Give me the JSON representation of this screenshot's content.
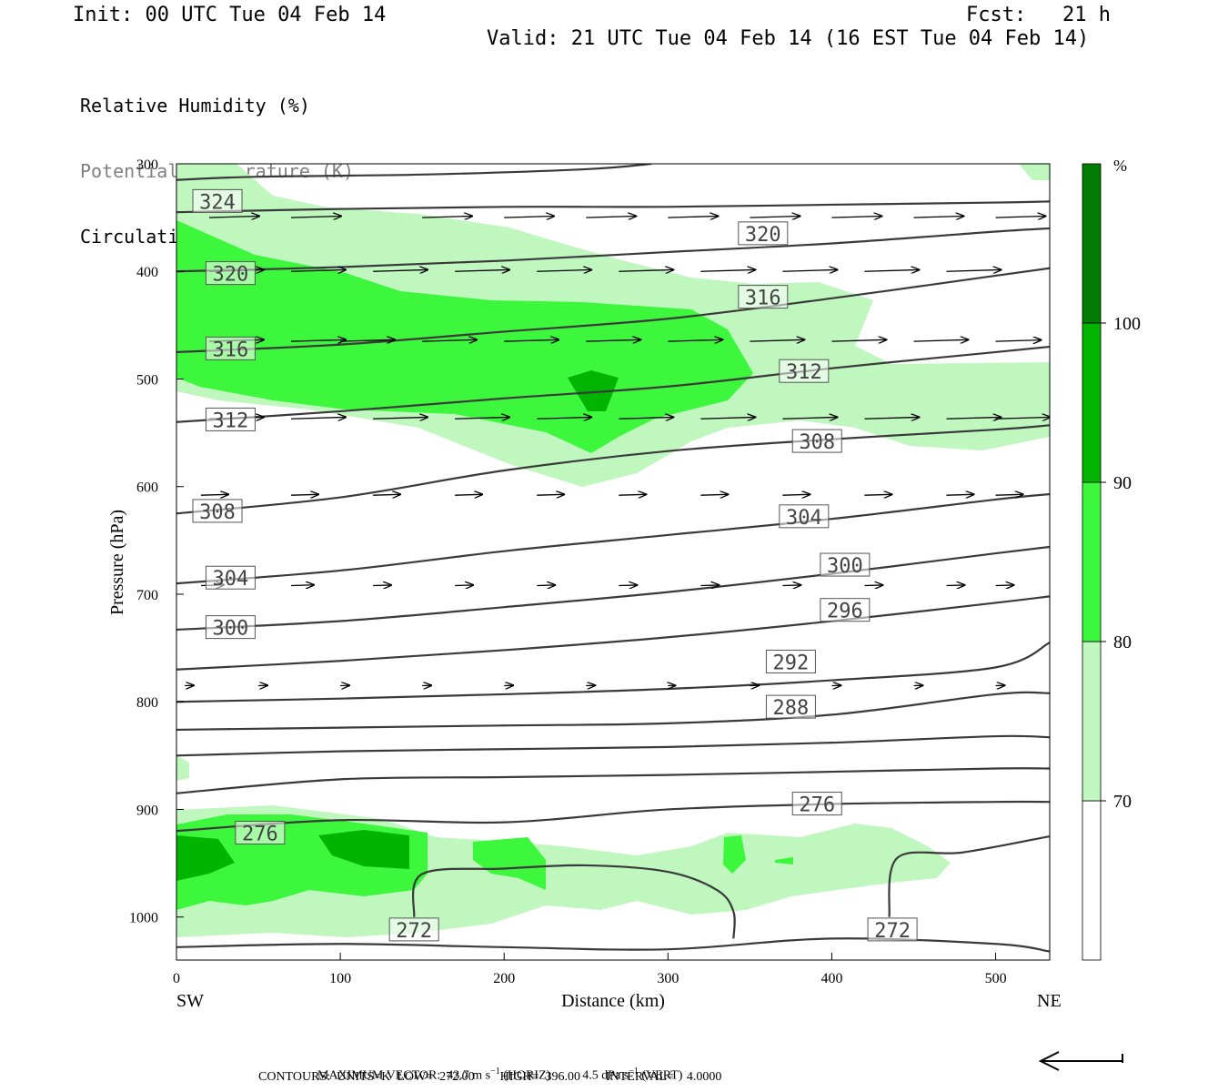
{
  "header": {
    "init": "Init: 00 UTC Tue 04 Feb 14",
    "fcst": "Fcst:   21 h",
    "valid": "Valid: 21 UTC Tue 04 Feb 14 (16 EST Tue 04 Feb 14)"
  },
  "legend": {
    "items": [
      "Relative Humidity (%)",
      "Potential Temperature (K)",
      "Circulation Vectors"
    ],
    "colors": [
      "#000000",
      "#808080",
      "#000000"
    ]
  },
  "footer": {
    "maxvec_prefix": "MAXIMUM VECTOR:  43.7 m s",
    "maxvec_mid": " (HORIZ)          4.5 dPa s",
    "maxvec_suffix": " (VERT)",
    "exp": "−1",
    "contours": "CONTOURS:  UNITS=K  LOW=  272.00        HIGH=  396.00        INTERVAL=    4.0000"
  },
  "chart_data": {
    "type": "cross-section",
    "xlabel": "Distance (km)",
    "ylabel": "Pressure (hPa)",
    "xlim": [
      0,
      533
    ],
    "ylim": [
      1040,
      300
    ],
    "x_ticks": [
      0,
      100,
      200,
      300,
      400,
      500
    ],
    "y_ticks": [
      300,
      400,
      500,
      600,
      700,
      800,
      900,
      1000
    ],
    "x_end_labels": {
      "left": "SW",
      "right": "NE"
    },
    "colorbar": {
      "unit": "%",
      "levels": [
        70,
        80,
        90,
        100
      ],
      "colors": [
        "#ffffff",
        "#bff7bf",
        "#3df73d",
        "#00b400",
        "#007c00"
      ]
    },
    "theta_contour_labels": [
      {
        "label": "324",
        "x": 25,
        "p": 335
      },
      {
        "label": "320",
        "x": 358,
        "p": 365
      },
      {
        "label": "320",
        "x": 33,
        "p": 402
      },
      {
        "label": "316",
        "x": 358,
        "p": 424
      },
      {
        "label": "316",
        "x": 33,
        "p": 472
      },
      {
        "label": "312",
        "x": 383,
        "p": 493
      },
      {
        "label": "312",
        "x": 33,
        "p": 538
      },
      {
        "label": "308",
        "x": 391,
        "p": 558
      },
      {
        "label": "308",
        "x": 25,
        "p": 623
      },
      {
        "label": "304",
        "x": 383,
        "p": 628
      },
      {
        "label": "304",
        "x": 33,
        "p": 685
      },
      {
        "label": "300",
        "x": 408,
        "p": 673
      },
      {
        "label": "300",
        "x": 33,
        "p": 731
      },
      {
        "label": "296",
        "x": 408,
        "p": 715
      },
      {
        "label": "292",
        "x": 375,
        "p": 763
      },
      {
        "label": "288",
        "x": 375,
        "p": 805
      },
      {
        "label": "276",
        "x": 391,
        "p": 895
      },
      {
        "label": "276",
        "x": 51,
        "p": 922
      },
      {
        "label": "272",
        "x": 145,
        "p": 1012
      },
      {
        "label": "272",
        "x": 437,
        "p": 1012
      }
    ],
    "theta_contours": [
      {
        "x": [
          0,
          50,
          150,
          250,
          290
        ],
        "p": [
          315,
          312,
          310,
          305,
          300
        ]
      },
      {
        "x": [
          0,
          100,
          200,
          300,
          400,
          500,
          533
        ],
        "p": [
          345,
          342,
          340,
          340,
          338,
          336,
          335
        ]
      },
      {
        "x": [
          0,
          100,
          200,
          300,
          400,
          500,
          533
        ],
        "p": [
          400,
          396,
          390,
          382,
          374,
          363,
          360
        ]
      },
      {
        "x": [
          0,
          100,
          200,
          300,
          400,
          500,
          533
        ],
        "p": [
          475,
          468,
          456,
          444,
          425,
          404,
          397
        ]
      },
      {
        "x": [
          0,
          100,
          200,
          300,
          400,
          500,
          533
        ],
        "p": [
          540,
          530,
          518,
          507,
          490,
          475,
          470
        ]
      },
      {
        "x": [
          0,
          100,
          200,
          300,
          400,
          500,
          533
        ],
        "p": [
          625,
          610,
          585,
          567,
          556,
          547,
          543
        ]
      },
      {
        "x": [
          0,
          100,
          200,
          300,
          400,
          500,
          533
        ],
        "p": [
          690,
          678,
          660,
          645,
          630,
          612,
          607
        ]
      },
      {
        "x": [
          0,
          100,
          200,
          300,
          400,
          500,
          533
        ],
        "p": [
          733,
          725,
          712,
          698,
          681,
          662,
          656
        ]
      },
      {
        "x": [
          0,
          100,
          200,
          300,
          400,
          500,
          533
        ],
        "p": [
          770,
          762,
          752,
          740,
          725,
          708,
          702
        ]
      },
      {
        "x": [
          0,
          100,
          200,
          300,
          400,
          500,
          533
        ],
        "p": [
          800,
          797,
          793,
          788,
          780,
          768,
          745
        ]
      },
      {
        "x": [
          0,
          100,
          200,
          300,
          400,
          500,
          533
        ],
        "p": [
          826,
          824,
          822,
          820,
          812,
          793,
          792
        ]
      },
      {
        "x": [
          0,
          100,
          200,
          300,
          400,
          500,
          533
        ],
        "p": [
          850,
          846,
          844,
          842,
          838,
          832,
          833
        ]
      },
      {
        "x": [
          0,
          100,
          200,
          300,
          400,
          500,
          533
        ],
        "p": [
          885,
          872,
          870,
          868,
          865,
          862,
          862
        ]
      },
      {
        "x": [
          0,
          100,
          200,
          300,
          400,
          500,
          533
        ],
        "p": [
          920,
          910,
          912,
          900,
          895,
          893,
          893
        ]
      },
      {
        "x": [
          0,
          100,
          200,
          300,
          400,
          500,
          533
        ],
        "p": [
          1028,
          1025,
          1028,
          1030,
          1020,
          1025,
          1032
        ]
      },
      {
        "x": [
          145,
          150,
          200,
          250,
          300,
          330,
          340,
          340
        ],
        "p": [
          1000,
          960,
          955,
          952,
          958,
          975,
          995,
          1020
        ]
      },
      {
        "x": [
          435,
          440,
          480,
          533
        ],
        "p": [
          1000,
          945,
          940,
          925
        ]
      }
    ],
    "circulation_vectors": [
      {
        "p": 350,
        "x": [
          20,
          70,
          150,
          200,
          250,
          300,
          350,
          400,
          450,
          500
        ],
        "u": [
          55,
          55,
          55,
          55,
          55,
          55,
          55,
          55,
          55,
          55
        ]
      },
      {
        "p": 400,
        "x": [
          20,
          70,
          120,
          170,
          220,
          270,
          320,
          370,
          420,
          470
        ],
        "u": [
          60,
          60,
          60,
          60,
          60,
          60,
          60,
          60,
          60,
          60
        ]
      },
      {
        "p": 465,
        "x": [
          20,
          70,
          100,
          150,
          200,
          250,
          300,
          350,
          400,
          450,
          500
        ],
        "u": [
          60,
          60,
          60,
          60,
          60,
          60,
          60,
          60,
          60,
          60,
          50
        ]
      },
      {
        "p": 537,
        "x": [
          20,
          70,
          120,
          170,
          220,
          270,
          320,
          370,
          420,
          470,
          500
        ],
        "u": [
          60,
          60,
          60,
          60,
          60,
          60,
          60,
          60,
          60,
          60,
          60
        ]
      },
      {
        "p": 608,
        "x": [
          15,
          70,
          120,
          170,
          220,
          270,
          320,
          370,
          420,
          470,
          500
        ],
        "u": [
          30,
          30,
          30,
          30,
          30,
          30,
          30,
          30,
          30,
          30,
          30
        ]
      },
      {
        "p": 692,
        "x": [
          15,
          70,
          120,
          170,
          220,
          270,
          320,
          370,
          420,
          470,
          500
        ],
        "u": [
          25,
          25,
          20,
          20,
          20,
          20,
          20,
          20,
          20,
          20,
          20
        ]
      },
      {
        "p": 785,
        "x": [
          5,
          50,
          100,
          150,
          200,
          250,
          300,
          350,
          400,
          450,
          500
        ],
        "u": [
          10,
          10,
          10,
          10,
          10,
          10,
          8,
          10,
          10,
          10,
          10
        ]
      }
    ]
  }
}
